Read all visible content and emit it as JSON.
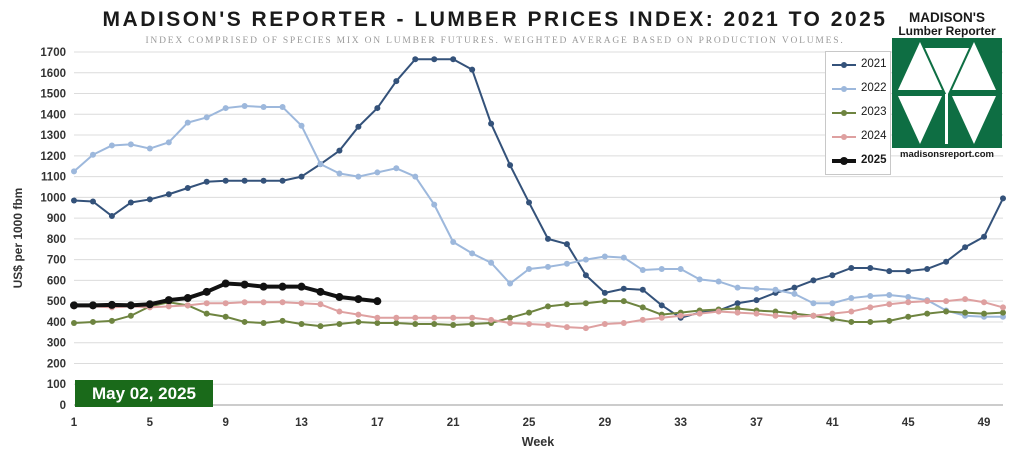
{
  "title": "MADISON'S REPORTER - LUMBER PRICES INDEX: 2021 TO 2025",
  "subtitle": "INDEX COMPRISED OF SPECIES MIX ON LUMBER FUTURES. WEIGHTED AVERAGE BASED ON PRODUCTION VOLUMES.",
  "logo": {
    "line1": "MADISON'S",
    "line2": "Lumber Reporter",
    "website": "madisonsreport.com",
    "color": "#0e6e43"
  },
  "date_badge": "May 02, 2025",
  "chart_data": {
    "type": "line",
    "title": "MADISON'S REPORTER - LUMBER PRICES INDEX: 2021 TO 2025",
    "xlabel": "Week",
    "ylabel": "US$ per 1000 fbm",
    "xlim": [
      1,
      50
    ],
    "ylim": [
      0,
      1700
    ],
    "x_ticks": [
      1,
      5,
      9,
      13,
      17,
      21,
      25,
      29,
      33,
      37,
      41,
      45,
      49
    ],
    "y_ticks": [
      0,
      100,
      200,
      300,
      400,
      500,
      600,
      700,
      800,
      900,
      1000,
      1100,
      1200,
      1300,
      1400,
      1500,
      1600,
      1700
    ],
    "grid": true,
    "legend_position": "top-right",
    "series": [
      {
        "name": "2021",
        "color": "#34527a",
        "x": [
          1,
          2,
          3,
          4,
          5,
          6,
          7,
          8,
          9,
          10,
          11,
          12,
          13,
          14,
          15,
          16,
          17,
          18,
          19,
          20,
          21,
          22,
          23,
          24,
          25,
          26,
          27,
          28,
          29,
          30,
          31,
          32,
          33,
          34,
          35,
          36,
          37,
          38,
          39,
          40,
          41,
          42,
          43,
          44,
          45,
          46,
          47,
          48,
          49,
          50
        ],
        "values": [
          985,
          980,
          910,
          975,
          990,
          1015,
          1045,
          1075,
          1080,
          1080,
          1080,
          1080,
          1100,
          1160,
          1225,
          1340,
          1430,
          1560,
          1665,
          1665,
          1665,
          1615,
          1355,
          1155,
          975,
          800,
          775,
          625,
          540,
          560,
          555,
          480,
          420,
          445,
          455,
          490,
          505,
          540,
          565,
          600,
          625,
          660,
          660,
          645,
          645,
          655,
          690,
          760,
          810,
          995
        ]
      },
      {
        "name": "2022",
        "color": "#9db8dc",
        "x": [
          1,
          2,
          3,
          4,
          5,
          6,
          7,
          8,
          9,
          10,
          11,
          12,
          13,
          14,
          15,
          16,
          17,
          18,
          19,
          20,
          21,
          22,
          23,
          24,
          25,
          26,
          27,
          28,
          29,
          30,
          31,
          32,
          33,
          34,
          35,
          36,
          37,
          38,
          39,
          40,
          41,
          42,
          43,
          44,
          45,
          46,
          47,
          48,
          49,
          50
        ],
        "values": [
          1125,
          1205,
          1250,
          1255,
          1235,
          1265,
          1360,
          1385,
          1430,
          1440,
          1435,
          1435,
          1345,
          1160,
          1115,
          1100,
          1120,
          1140,
          1100,
          965,
          785,
          730,
          685,
          585,
          655,
          665,
          680,
          700,
          715,
          710,
          650,
          655,
          655,
          605,
          595,
          565,
          560,
          555,
          535,
          490,
          490,
          515,
          525,
          530,
          520,
          505,
          455,
          430,
          425,
          425
        ]
      },
      {
        "name": "2023",
        "color": "#6e8440",
        "x": [
          1,
          2,
          3,
          4,
          5,
          6,
          7,
          8,
          9,
          10,
          11,
          12,
          13,
          14,
          15,
          16,
          17,
          18,
          19,
          20,
          21,
          22,
          23,
          24,
          25,
          26,
          27,
          28,
          29,
          30,
          31,
          32,
          33,
          34,
          35,
          36,
          37,
          38,
          39,
          40,
          41,
          42,
          43,
          44,
          45,
          46,
          47,
          48,
          49,
          50
        ],
        "values": [
          395,
          400,
          405,
          430,
          475,
          495,
          480,
          440,
          425,
          400,
          395,
          405,
          390,
          380,
          390,
          400,
          395,
          395,
          390,
          390,
          385,
          390,
          395,
          420,
          445,
          475,
          485,
          490,
          500,
          500,
          470,
          435,
          445,
          455,
          460,
          465,
          455,
          450,
          440,
          430,
          415,
          400,
          400,
          405,
          425,
          440,
          450,
          445,
          440,
          445
        ]
      },
      {
        "name": "2024",
        "color": "#dea0a0",
        "x": [
          1,
          2,
          3,
          4,
          5,
          6,
          7,
          8,
          9,
          10,
          11,
          12,
          13,
          14,
          15,
          16,
          17,
          18,
          19,
          20,
          21,
          22,
          23,
          24,
          25,
          26,
          27,
          28,
          29,
          30,
          31,
          32,
          33,
          34,
          35,
          36,
          37,
          38,
          39,
          40,
          41,
          42,
          43,
          44,
          45,
          46,
          47,
          48,
          49,
          50
        ],
        "values": [
          475,
          475,
          470,
          475,
          470,
          475,
          480,
          490,
          490,
          495,
          495,
          495,
          490,
          485,
          450,
          435,
          420,
          420,
          420,
          420,
          420,
          420,
          410,
          395,
          390,
          385,
          375,
          370,
          390,
          395,
          410,
          420,
          430,
          440,
          450,
          445,
          440,
          430,
          425,
          430,
          440,
          450,
          470,
          485,
          495,
          500,
          500,
          510,
          495,
          470
        ]
      },
      {
        "name": "2025",
        "color": "#111111",
        "x": [
          1,
          2,
          3,
          4,
          5,
          6,
          7,
          8,
          9,
          10,
          11,
          12,
          13,
          14,
          15,
          16,
          17
        ],
        "values": [
          480,
          480,
          482,
          480,
          485,
          505,
          515,
          545,
          585,
          580,
          570,
          570,
          570,
          545,
          520,
          510,
          500
        ]
      }
    ]
  }
}
